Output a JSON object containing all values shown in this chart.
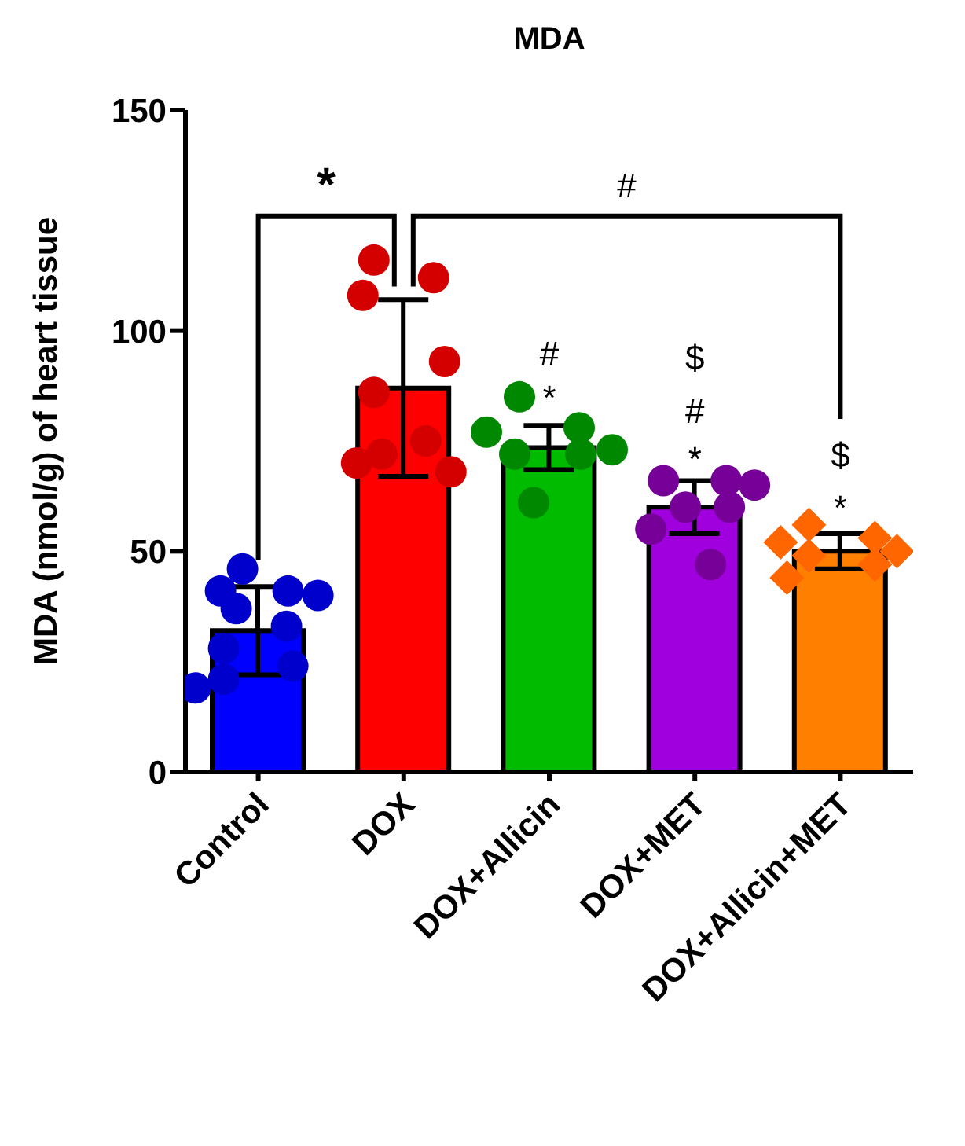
{
  "chart_data": {
    "type": "bar",
    "title": "MDA",
    "ylabel": "MDA (nmol/g) of heart tissue",
    "categories": [
      "Control",
      "DOX",
      "DOX+Allicin",
      "DOX+MET",
      "DOX+Allicin+MET"
    ],
    "ylim": [
      0,
      150
    ],
    "yticks": [
      0,
      50,
      100,
      150
    ],
    "series": [
      {
        "values": [
          32,
          87,
          73.5,
          60,
          50
        ],
        "colors": [
          "#0000ff",
          "#ff0000",
          "#00bb00",
          "#a000dd",
          "#ff8000"
        ],
        "errors": [
          10,
          20,
          5,
          6,
          4
        ]
      },
      {
        "type": "scatter",
        "marker": "circle",
        "color": "#0000cc",
        "x": [
          "Control",
          "Control",
          "Control",
          "Control",
          "Control",
          "Control",
          "Control",
          "Control",
          "Control",
          "Control"
        ],
        "values": [
          46,
          41,
          40,
          41,
          37,
          33,
          28,
          24,
          19,
          21
        ]
      },
      {
        "type": "scatter",
        "marker": "circle",
        "color": "#d40000",
        "x": [
          "DOX",
          "DOX",
          "DOX",
          "DOX",
          "DOX",
          "DOX",
          "DOX",
          "DOX",
          "DOX"
        ],
        "values": [
          116,
          112,
          108,
          93,
          86,
          75,
          72,
          68,
          70
        ]
      },
      {
        "type": "scatter",
        "marker": "circle",
        "color": "#008800",
        "x": [
          "DOX+Allicin",
          "DOX+Allicin",
          "DOX+Allicin",
          "DOX+Allicin",
          "DOX+Allicin",
          "DOX+Allicin",
          "DOX+Allicin"
        ],
        "values": [
          85,
          78,
          77,
          73,
          72,
          72,
          61
        ]
      },
      {
        "type": "scatter",
        "marker": "circle",
        "color": "#770099",
        "x": [
          "DOX+MET",
          "DOX+MET",
          "DOX+MET",
          "DOX+MET",
          "DOX+MET",
          "DOX+MET",
          "DOX+MET"
        ],
        "values": [
          66,
          66,
          65,
          60,
          60,
          55,
          47
        ]
      },
      {
        "type": "scatter",
        "marker": "diamond",
        "color": "#ff6600",
        "x": [
          "DOX+Allicin+MET",
          "DOX+Allicin+MET",
          "DOX+Allicin+MET",
          "DOX+Allicin+MET",
          "DOX+Allicin+MET",
          "DOX+Allicin+MET",
          "DOX+Allicin+MET"
        ],
        "values": [
          56,
          53,
          52,
          50,
          49,
          47,
          44
        ]
      }
    ],
    "annotations": [
      "*",
      "#",
      "*",
      "#",
      "*",
      "#",
      "$",
      "*",
      "$"
    ]
  }
}
